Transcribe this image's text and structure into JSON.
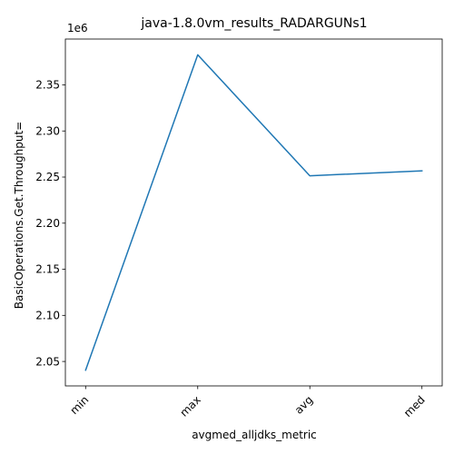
{
  "chart_data": {
    "type": "line",
    "title": "java-1.8.0vm_results_RADARGUNs1",
    "xlabel": "avgmed_alljdks_metric",
    "ylabel": "BasicOperations.Get.Throughput=",
    "offset_label": "1e6",
    "categories": [
      "min",
      "max",
      "avg",
      "med"
    ],
    "series": [
      {
        "values": [
          2040600,
          2382600,
          2251400,
          2256700
        ],
        "color": "#1f77b4"
      }
    ],
    "ylim": [
      2023500,
      2399700
    ],
    "yticks": [
      2.05,
      2.1,
      2.15,
      2.2,
      2.25,
      2.3,
      2.35
    ],
    "ytick_labels": [
      "2.05",
      "2.10",
      "2.15",
      "2.20",
      "2.25",
      "2.30",
      "2.35"
    ],
    "ytick_scale": 1000000,
    "grid": false,
    "x_tick_rotation": 45
  }
}
